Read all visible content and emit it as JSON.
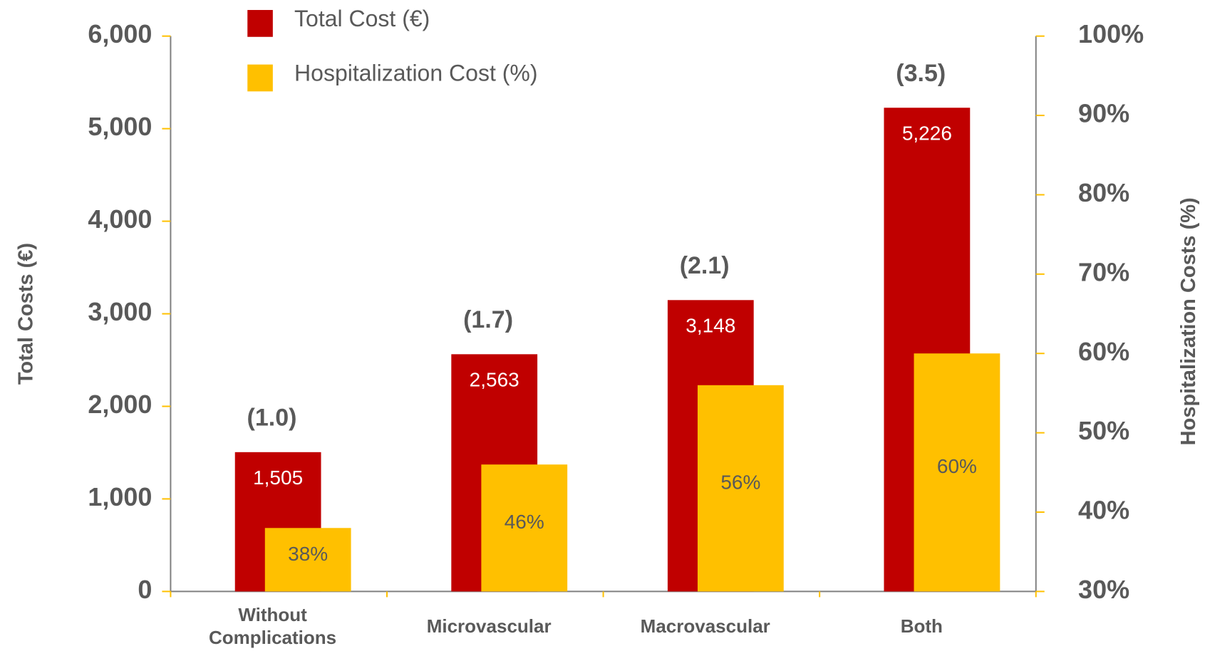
{
  "chart_data": {
    "type": "bar",
    "categories": [
      "Without Complications",
      "Microvascular",
      "Macrovascular",
      "Both"
    ],
    "series": [
      {
        "name": "Total Cost (€)",
        "color": "#c00000",
        "values": [
          1505,
          2563,
          3148,
          5226
        ],
        "value_labels": [
          "1,505",
          "2,563",
          "3,148",
          "5,226"
        ]
      },
      {
        "name": "Hospitalization Cost (%)",
        "color": "#ffc000",
        "axis": "y2",
        "values": [
          38,
          46,
          56,
          60
        ],
        "value_labels": [
          "38%",
          "46%",
          "56%",
          "60%"
        ]
      }
    ],
    "annotations": [
      "(1.0)",
      "(1.7)",
      "(2.1)",
      "(3.5)"
    ],
    "y_label": "Total Costs (€)",
    "y2_label": "Hospitalization Costs (%)",
    "ylim": [
      0,
      6000
    ],
    "yticks": [
      0,
      {
        "value": 1000,
        "label": "1,000"
      },
      {
        "value": 2000,
        "label": "2,000"
      },
      {
        "value": 3000,
        "label": "3,000"
      },
      {
        "value": 4000,
        "label": "4,000"
      },
      {
        "value": 5000,
        "label": "5,000"
      },
      {
        "value": 6000,
        "label": "6,000"
      }
    ],
    "y2lim": [
      30,
      100
    ],
    "y2ticks": [
      {
        "value": 30,
        "label": "30%"
      },
      {
        "value": 40,
        "label": "40%"
      },
      {
        "value": 50,
        "label": "50%"
      },
      {
        "value": 60,
        "label": "60%"
      },
      {
        "value": 70,
        "label": "70%"
      },
      {
        "value": 80,
        "label": "80%"
      },
      {
        "value": 90,
        "label": "90%"
      },
      {
        "value": 100,
        "label": "100%"
      }
    ],
    "legend": "top"
  }
}
